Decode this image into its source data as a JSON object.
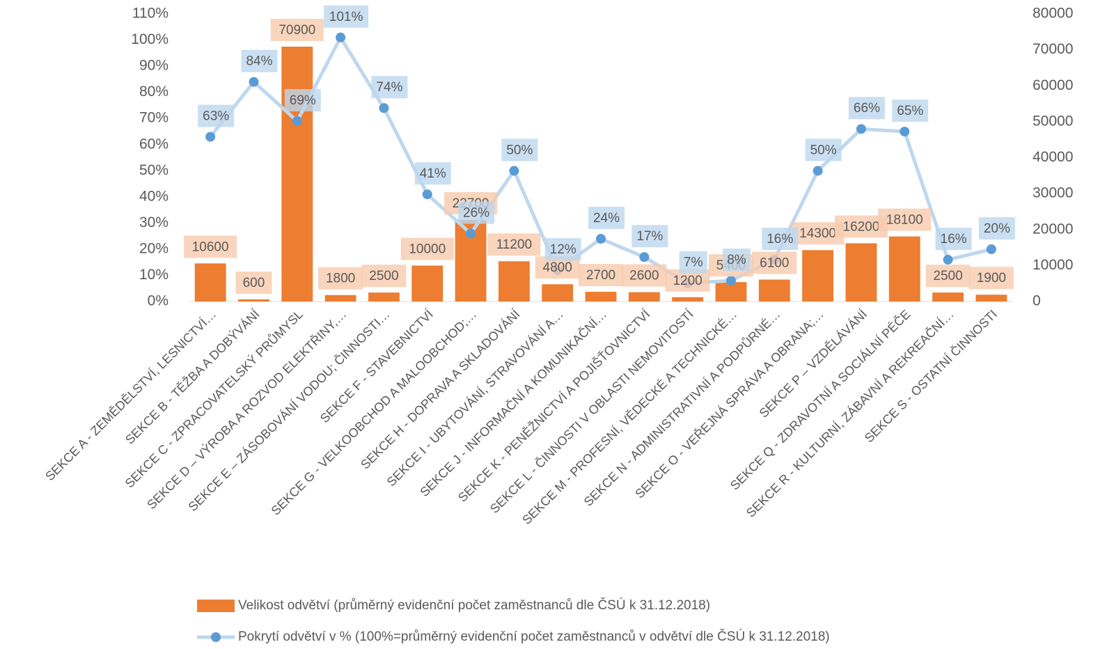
{
  "chart_data": {
    "type": "combo",
    "categories": [
      "SEKCE A - ZEMĚDĚLSTVÍ, LESNICTVÍ…",
      "SEKCE B - TĚŽBA A DOBÝVÁNÍ",
      "SEKCE C - ZPRACOVATELSKÝ PRŮMYSL",
      "SEKCE D – VÝROBA A ROZVOD ELEKTŘINY,…",
      "SEKCE E – ZÁSOBOVÁNÍ VODOU; ČINNOSTI…",
      "SEKCE F - STAVEBNICTVÍ",
      "SEKCE G - VELKOOBCHOD A MALOOBCHOD;…",
      "SEKCE H - DOPRAVA A SKLADOVÁNÍ",
      "SEKCE I - UBYTOVÁNÍ, STRAVOVÁNÍ A…",
      "SEKCE J - INFORMAČNÍ A KOMUNIKAČNÍ…",
      "SEKCE K - PENĚŽNICTVÍ A POJIŠŤOVNICTVÍ",
      "SEKCE L - ČINNOSTI V OBLASTI NEMOVITOSTÍ",
      "SEKCE M - PROFESNÍ, VĚDECKÉ A TECHNICKÉ…",
      "SEKCE N - ADMINISTRATIVNÍ A PODPŮRNÉ…",
      "SEKCE O - VEŘEJNÁ SPRÁVA A OBRANA;…",
      "SEKCE P – VZDĚLÁVÁNÍ",
      "SEKCE Q - ZDRAVOTNÍ A SOCIÁLNÍ PÉČE",
      "SEKCE R - KULTURNÍ, ZÁBAVNÍ A REKREAČNÍ…",
      "SEKCE S - OSTATNÍ ČINNOSTI"
    ],
    "series": [
      {
        "name": "Velikost odvětví (průměrný evidenční počet zaměstnanců dle ČSÚ k 31.12.2018)",
        "type": "bar",
        "axis": "y2",
        "color": "#ed7d31",
        "values": [
          10600,
          600,
          70900,
          1800,
          2500,
          10000,
          22700,
          11200,
          4800,
          2700,
          2600,
          1200,
          5400,
          6100,
          14300,
          16200,
          18100,
          2500,
          1900
        ]
      },
      {
        "name": "Pokrytí odvětví v % (100%=průměrný evidenční počet zaměstnanců v odvětví dle ČSÚ k 31.12.2018)",
        "type": "line",
        "color": "#bdd7ee",
        "marker_color": "#5b9bd5",
        "values": [
          63,
          84,
          69,
          101,
          74,
          41,
          26,
          50,
          12,
          24,
          17,
          7,
          8,
          16,
          50,
          66,
          65,
          16,
          20
        ],
        "value_labels": [
          "63%",
          "84%",
          "69%",
          "101%",
          "74%",
          "41%",
          "26%",
          "50%",
          "12%",
          "24%",
          "17%",
          "7%",
          "8%",
          "16%",
          "50%",
          "66%",
          "65%",
          "16%",
          "20%"
        ]
      }
    ],
    "ylim": [
      0,
      110
    ],
    "yticks": [
      {
        "value": 0,
        "label": "0%"
      },
      {
        "value": 10,
        "label": "10%"
      },
      {
        "value": 20,
        "label": "20%"
      },
      {
        "value": 30,
        "label": "30%"
      },
      {
        "value": 40,
        "label": "40%"
      },
      {
        "value": 50,
        "label": "50%"
      },
      {
        "value": 60,
        "label": "60%"
      },
      {
        "value": 70,
        "label": "70%"
      },
      {
        "value": 80,
        "label": "80%"
      },
      {
        "value": 90,
        "label": "90%"
      },
      {
        "value": 100,
        "label": "100%"
      },
      {
        "value": 110,
        "label": "110%"
      }
    ],
    "y2lim": [
      0,
      80000
    ],
    "y2ticks": [
      0,
      10000,
      20000,
      30000,
      40000,
      50000,
      60000,
      70000,
      80000
    ]
  }
}
